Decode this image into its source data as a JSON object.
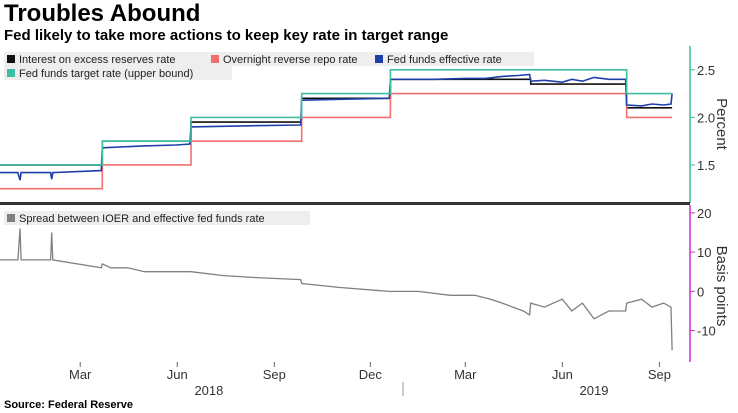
{
  "title": "Troubles Abound",
  "subtitle": "Fed likely to take more actions to keep key rate in target range",
  "source": "Source: Federal Reserve",
  "colors": {
    "ioer": "#111111",
    "rrp": "#f07070",
    "effr": "#1f3fa8",
    "target": "#3cbfa2",
    "spread": "#808080",
    "top_axis": "#3cbfa2",
    "bottom_axis": "#d02fd0",
    "divider": "#333333"
  },
  "chart_data": [
    {
      "type": "line",
      "panel": "top",
      "ylabel": "Percent",
      "ylim": [
        1.1,
        2.75
      ],
      "yticks": [
        1.5,
        2.0,
        2.5
      ],
      "ytick_labels": [
        "1.5",
        "2.0",
        "2.5"
      ],
      "legend_position": "top-left",
      "series": [
        {
          "name": "Interest on excess reserves rate",
          "color_key": "ioer",
          "step": true,
          "points": [
            [
              "2017-12-15",
              1.5
            ],
            [
              "2018-03-22",
              1.75
            ],
            [
              "2018-06-14",
              1.95
            ],
            [
              "2018-09-27",
              2.2
            ],
            [
              "2018-12-20",
              2.4
            ],
            [
              "2019-05-02",
              2.35
            ],
            [
              "2019-08-01",
              2.1
            ],
            [
              "2019-09-13",
              2.1
            ]
          ]
        },
        {
          "name": "Overnight reverse repo rate",
          "color_key": "rrp",
          "step": true,
          "points": [
            [
              "2017-12-15",
              1.25
            ],
            [
              "2018-03-22",
              1.5
            ],
            [
              "2018-06-14",
              1.75
            ],
            [
              "2018-09-27",
              2.0
            ],
            [
              "2018-12-20",
              2.25
            ],
            [
              "2019-08-01",
              2.0
            ],
            [
              "2019-09-13",
              2.0
            ]
          ]
        },
        {
          "name": "Fed funds effective rate",
          "color_key": "effr",
          "step": false,
          "points": [
            [
              "2017-12-15",
              1.42
            ],
            [
              "2018-01-01",
              1.42
            ],
            [
              "2018-01-03",
              1.34
            ],
            [
              "2018-01-04",
              1.42
            ],
            [
              "2018-02-01",
              1.42
            ],
            [
              "2018-02-02",
              1.35
            ],
            [
              "2018-02-03",
              1.42
            ],
            [
              "2018-03-21",
              1.44
            ],
            [
              "2018-03-22",
              1.68
            ],
            [
              "2018-04-30",
              1.7
            ],
            [
              "2018-05-31",
              1.71
            ],
            [
              "2018-06-13",
              1.72
            ],
            [
              "2018-06-14",
              1.9
            ],
            [
              "2018-08-01",
              1.91
            ],
            [
              "2018-09-26",
              1.92
            ],
            [
              "2018-09-27",
              2.18
            ],
            [
              "2018-11-01",
              2.19
            ],
            [
              "2018-12-19",
              2.2
            ],
            [
              "2018-12-20",
              2.4
            ],
            [
              "2019-02-01",
              2.4
            ],
            [
              "2019-03-01",
              2.41
            ],
            [
              "2019-03-20",
              2.41
            ],
            [
              "2019-04-05",
              2.43
            ],
            [
              "2019-04-20",
              2.44
            ],
            [
              "2019-05-01",
              2.45
            ],
            [
              "2019-05-02",
              2.38
            ],
            [
              "2019-05-15",
              2.39
            ],
            [
              "2019-06-01",
              2.37
            ],
            [
              "2019-06-10",
              2.4
            ],
            [
              "2019-06-20",
              2.38
            ],
            [
              "2019-07-01",
              2.42
            ],
            [
              "2019-07-15",
              2.4
            ],
            [
              "2019-07-31",
              2.4
            ],
            [
              "2019-08-01",
              2.13
            ],
            [
              "2019-08-15",
              2.12
            ],
            [
              "2019-08-25",
              2.14
            ],
            [
              "2019-09-05",
              2.13
            ],
            [
              "2019-09-12",
              2.14
            ],
            [
              "2019-09-13",
              2.25
            ]
          ]
        },
        {
          "name": "Fed funds target rate (upper bound)",
          "color_key": "target",
          "step": true,
          "points": [
            [
              "2017-12-15",
              1.5
            ],
            [
              "2018-03-22",
              1.75
            ],
            [
              "2018-06-14",
              2.0
            ],
            [
              "2018-09-27",
              2.25
            ],
            [
              "2018-12-20",
              2.5
            ],
            [
              "2019-08-01",
              2.25
            ],
            [
              "2019-09-13",
              2.25
            ]
          ]
        }
      ]
    },
    {
      "type": "line",
      "panel": "bottom",
      "ylabel": "Basis points",
      "ylim": [
        -18,
        22
      ],
      "yticks": [
        -10,
        0,
        10,
        20
      ],
      "ytick_labels": [
        "-10",
        "0",
        "10",
        "20"
      ],
      "legend_position": "top-left",
      "series": [
        {
          "name": "Spread between IOER and effective fed funds rate",
          "color_key": "spread",
          "step": false,
          "points": [
            [
              "2017-12-15",
              8
            ],
            [
              "2018-01-01",
              8
            ],
            [
              "2018-01-03",
              16
            ],
            [
              "2018-01-04",
              8
            ],
            [
              "2018-02-01",
              8
            ],
            [
              "2018-02-02",
              15
            ],
            [
              "2018-02-03",
              8
            ],
            [
              "2018-03-21",
              6
            ],
            [
              "2018-03-22",
              7
            ],
            [
              "2018-03-30",
              6
            ],
            [
              "2018-04-15",
              6
            ],
            [
              "2018-05-01",
              5
            ],
            [
              "2018-06-13",
              5
            ],
            [
              "2018-06-14",
              5
            ],
            [
              "2018-07-15",
              4
            ],
            [
              "2018-08-15",
              3.5
            ],
            [
              "2018-09-26",
              3
            ],
            [
              "2018-09-27",
              2
            ],
            [
              "2018-11-01",
              1
            ],
            [
              "2018-12-19",
              0
            ],
            [
              "2018-12-20",
              0
            ],
            [
              "2019-01-15",
              0
            ],
            [
              "2019-02-15",
              -1
            ],
            [
              "2019-03-10",
              -1
            ],
            [
              "2019-03-25",
              -2
            ],
            [
              "2019-04-05",
              -3
            ],
            [
              "2019-04-15",
              -4
            ],
            [
              "2019-04-25",
              -5
            ],
            [
              "2019-05-01",
              -6
            ],
            [
              "2019-05-02",
              -3
            ],
            [
              "2019-05-15",
              -4
            ],
            [
              "2019-06-01",
              -2
            ],
            [
              "2019-06-10",
              -5
            ],
            [
              "2019-06-20",
              -3
            ],
            [
              "2019-07-01",
              -7
            ],
            [
              "2019-07-15",
              -5
            ],
            [
              "2019-07-31",
              -5
            ],
            [
              "2019-08-01",
              -3
            ],
            [
              "2019-08-15",
              -2
            ],
            [
              "2019-08-25",
              -4
            ],
            [
              "2019-09-05",
              -3
            ],
            [
              "2019-09-12",
              -4
            ],
            [
              "2019-09-13",
              -15
            ]
          ]
        }
      ]
    }
  ],
  "x_axis": {
    "month_ticks": [
      {
        "date": "2018-03-01",
        "label": "Mar"
      },
      {
        "date": "2018-06-01",
        "label": "Jun"
      },
      {
        "date": "2018-09-01",
        "label": "Sep"
      },
      {
        "date": "2018-12-01",
        "label": "Dec"
      },
      {
        "date": "2019-03-01",
        "label": "Mar"
      },
      {
        "date": "2019-06-01",
        "label": "Jun"
      },
      {
        "date": "2019-09-01",
        "label": "Sep"
      }
    ],
    "year_labels": [
      {
        "center": "2018-07-01",
        "label": "2018"
      },
      {
        "center": "2019-07-01",
        "label": "2019"
      }
    ],
    "year_separator": "2019-01-01",
    "range": [
      "2017-12-15",
      "2019-09-30"
    ]
  }
}
